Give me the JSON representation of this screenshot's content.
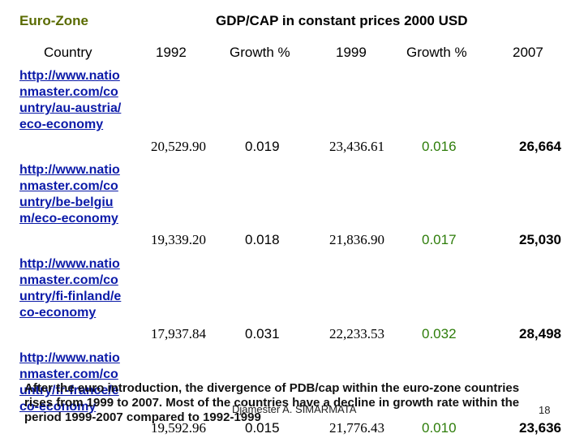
{
  "header": {
    "zone": "Euro-Zone",
    "title": "GDP/CAP in constant prices 2000 USD"
  },
  "columns": {
    "country": "Country",
    "y1992": "1992",
    "growth1": "Growth %",
    "y1999": "1999",
    "growth2": "Growth %",
    "y2007": "2007"
  },
  "rows": [
    {
      "link": "http://www.nationmaster.com/country/au-austria/eco-economy",
      "v1992": "20,529.90",
      "g1": "0.019",
      "v1999": "23,436.61",
      "g2": "0.016",
      "v2007": "26,664"
    },
    {
      "link": "http://www.nationmaster.com/country/be-belgium/eco-economy",
      "v1992": "19,339.20",
      "g1": "0.018",
      "v1999": "21,836.90",
      "g2": "0.017",
      "v2007": "25,030"
    },
    {
      "link": "http://www.nationmaster.com/country/fi-finland/eco-economy",
      "v1992": "17,937.84",
      "g1": "0.031",
      "v1999": "22,233.53",
      "g2": "0.032",
      "v2007": "28,498"
    },
    {
      "link": "http://www.nationmaster.com/country/fr-france/eco-economy",
      "v1992": "19,592.96",
      "g1": "0.015",
      "v1999": "21,776.43",
      "g2": "0.010",
      "v2007": "23,636"
    }
  ],
  "note": "After the euro introduction, the divergence of PDB/cap within the euro-zone countries rises from 1999 to 2007. Most of the countries have a decline in growth rate within the period 1999-2007 compared to 1992-1999",
  "footer": {
    "author": "Djamester A. SIMARMATA",
    "page": "18"
  }
}
